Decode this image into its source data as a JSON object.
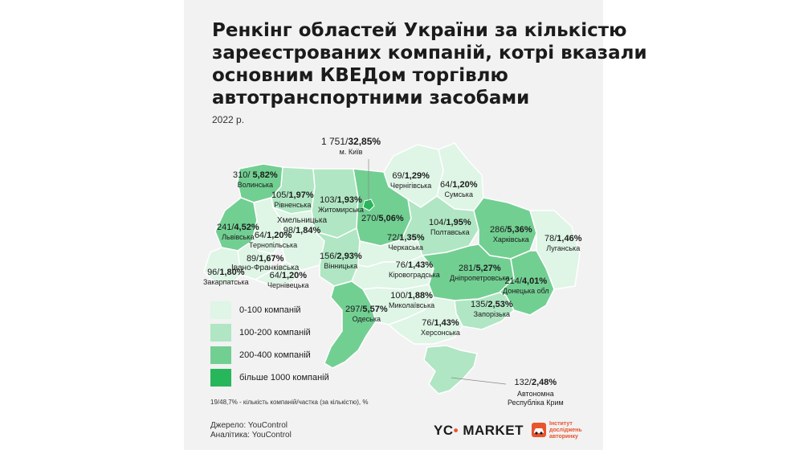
{
  "title_lines": [
    "Ренкінг областей України за кількістю",
    "зареєстрованих компаній, котрі вказали",
    "основним КВЕДом торгівлю",
    "автотранспортними засобами"
  ],
  "year": "2022 р.",
  "colors": {
    "bin1": "#dff5e6",
    "bin2": "#b0e6c3",
    "bin3": "#72cf92",
    "bin4": "#28b65b",
    "bg": "#f2f2f2",
    "accent": "#e8542e"
  },
  "regions": [
    {
      "value": "1 751/",
      "share": "32,85%",
      "name": "м. Київ"
    },
    {
      "value": "310/ ",
      "share": "5,82%",
      "name": "Волинська"
    },
    {
      "value": "105/",
      "share": "1,97%",
      "name": "Рівненська"
    },
    {
      "value": "103/",
      "share": "1,93%",
      "name": "Житомирська"
    },
    {
      "value": "69/",
      "share": "1,29%",
      "name": "Чернігівська"
    },
    {
      "value": "64/",
      "share": "1,20%",
      "name": "Сумська"
    },
    {
      "value": "241/",
      "share": "4,52%",
      "name": "Львівська"
    },
    {
      "value": "98/",
      "share": "1,84%",
      "name": "Хмельницька"
    },
    {
      "value": "64/",
      "share": "1,20%",
      "name": "Тернопільська"
    },
    {
      "value": "270/",
      "share": "5,06%",
      "name": "Київська"
    },
    {
      "value": "104/",
      "share": "1,95%",
      "name": "Полтавська"
    },
    {
      "value": "286/",
      "share": "5,36%",
      "name": "Харківська"
    },
    {
      "value": "78/",
      "share": "1,46%",
      "name": "Луганська"
    },
    {
      "value": "72/",
      "share": "1,35%",
      "name": "Черкаська"
    },
    {
      "value": "89/",
      "share": "1,67%",
      "name": "Івано-Франківська"
    },
    {
      "value": "156/",
      "share": "2,93%",
      "name": "Вінницька"
    },
    {
      "value": "96/",
      "share": "1,80%",
      "name": "Закарпатська"
    },
    {
      "value": "64/",
      "share": "1,20%",
      "name": "Чернівецька"
    },
    {
      "value": "76/",
      "share": "1,43%",
      "name": "Кіровоградська"
    },
    {
      "value": "281/",
      "share": "5,27%",
      "name": "Дніпропетровська"
    },
    {
      "value": "214/",
      "share": "4,01%",
      "name": "Донецька обл"
    },
    {
      "value": "297/",
      "share": "5,57%",
      "name": "Одеська"
    },
    {
      "value": "100/",
      "share": "1,88%",
      "name": "Миколаївська"
    },
    {
      "value": "135/",
      "share": "2,53%",
      "name": "Запорізька"
    },
    {
      "value": "76/",
      "share": "1,43%",
      "name": "Херсонська"
    },
    {
      "value": "132/",
      "share": "2,48%",
      "name": "Автономна\nРеспубліка Крим"
    }
  ],
  "legend": [
    "0-100 компаній",
    "100-200 компаній",
    "200-400 компаній",
    "більше 1000 компаній"
  ],
  "footnote": "19/48,7% - кількість компаній/частка (за кількістю), %",
  "source": "Джерело: YouControl",
  "analytics": "Аналітика: YouControl",
  "brand": {
    "left": "YC",
    "dot": "•",
    "right": "MARKET"
  },
  "institute": "Інститут\nдосліджень\nавторинку"
}
